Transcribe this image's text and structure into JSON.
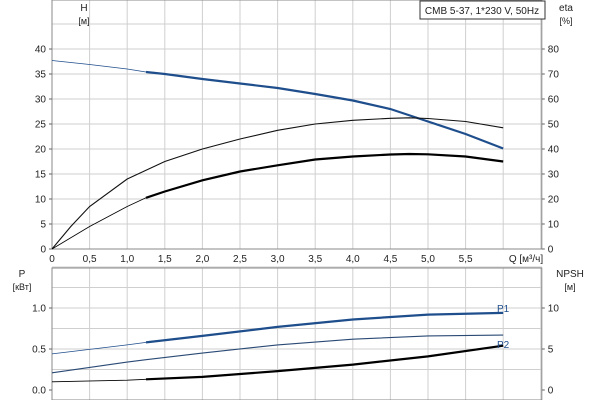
{
  "chart_data": [
    {
      "type": "line",
      "title": "CMB 5-37, 1*230 V, 50Hz",
      "xlabel": "Q [м³/ч]",
      "ylabel_left": "H",
      "ylabel_left_unit": "[м]",
      "ylabel_right": "eta",
      "ylabel_right_unit": "[%]",
      "xlim": [
        0,
        6.5
      ],
      "ylim_left": [
        0,
        45
      ],
      "ylim_right": [
        0,
        90
      ],
      "grid": true,
      "x_ticks": [
        "0",
        "0,5",
        "1,0",
        "1,5",
        "2,0",
        "2,5",
        "3,0",
        "3,5",
        "4,0",
        "4,5",
        "5,0",
        "5,5"
      ],
      "y_ticks_left": [
        "0",
        "5",
        "10",
        "15",
        "20",
        "25",
        "30",
        "35",
        "40"
      ],
      "y_ticks_right": [
        "0",
        "10",
        "20",
        "30",
        "40",
        "50",
        "60",
        "70",
        "80"
      ],
      "series": [
        {
          "axis": "left",
          "color": "#1f4e8c",
          "thick_from": 1.25,
          "x": [
            0,
            0.5,
            1.0,
            1.25,
            1.5,
            2.0,
            2.5,
            3.0,
            3.5,
            4.0,
            4.5,
            4.9,
            5.5,
            6.0
          ],
          "y": [
            37.7,
            36.9,
            36.0,
            35.4,
            35.0,
            34.0,
            33.1,
            32.2,
            31.0,
            29.7,
            28.0,
            26.0,
            23.0,
            20.1
          ]
        },
        {
          "axis": "right",
          "color": "#111111",
          "thick_from": null,
          "x": [
            0,
            0.25,
            0.5,
            1.0,
            1.5,
            2.0,
            2.5,
            3.0,
            3.5,
            4.0,
            4.5,
            4.75,
            5.0,
            5.5,
            6.0
          ],
          "y": [
            0,
            9,
            17,
            28,
            35,
            40,
            44,
            47.5,
            50,
            51.5,
            52.3,
            52.5,
            52.2,
            51,
            48.5
          ]
        },
        {
          "axis": "right",
          "color": "#000000",
          "thick_from": 1.25,
          "x": [
            0,
            0.5,
            1.0,
            1.25,
            1.5,
            2.0,
            2.5,
            3.0,
            3.5,
            4.0,
            4.5,
            4.75,
            5.0,
            5.5,
            6.0
          ],
          "y": [
            0,
            9,
            17,
            20.5,
            23,
            27.5,
            31,
            33.5,
            35.8,
            37,
            37.8,
            38,
            37.9,
            37,
            35
          ]
        }
      ]
    },
    {
      "type": "line",
      "ylabel_left": "P",
      "ylabel_left_unit": "[кВт]",
      "ylabel_right": "NPSH",
      "ylabel_right_unit": "[м]",
      "xlim": [
        0,
        6.5
      ],
      "ylim_left": [
        0,
        1.5
      ],
      "ylim_right": [
        0,
        15
      ],
      "grid": true,
      "y_ticks_left": [
        "0.0",
        "0.5",
        "1.0"
      ],
      "y_ticks_right": [
        "0",
        "5",
        "10"
      ],
      "annotations": [
        "P1",
        "P2"
      ],
      "series": [
        {
          "name": "P1",
          "axis": "left",
          "color": "#1f4e8c",
          "thick_from": 1.25,
          "x": [
            0,
            1.0,
            1.25,
            2.0,
            3.0,
            4.0,
            5.0,
            6.0
          ],
          "y": [
            0.44,
            0.55,
            0.58,
            0.66,
            0.77,
            0.86,
            0.92,
            0.94
          ]
        },
        {
          "name": "P2",
          "axis": "left",
          "color": "#2a4a75",
          "thick_from": null,
          "x": [
            0,
            1.0,
            1.25,
            2.0,
            3.0,
            4.0,
            5.0,
            6.0
          ],
          "y": [
            0.21,
            0.34,
            0.37,
            0.45,
            0.55,
            0.62,
            0.66,
            0.67
          ]
        },
        {
          "axis": "right",
          "color": "#000000",
          "thick_from": 1.25,
          "x": [
            0,
            1.0,
            1.25,
            2.0,
            3.0,
            4.0,
            5.0,
            6.0
          ],
          "y": [
            1.0,
            1.2,
            1.3,
            1.6,
            2.3,
            3.1,
            4.1,
            5.4
          ]
        }
      ]
    }
  ]
}
